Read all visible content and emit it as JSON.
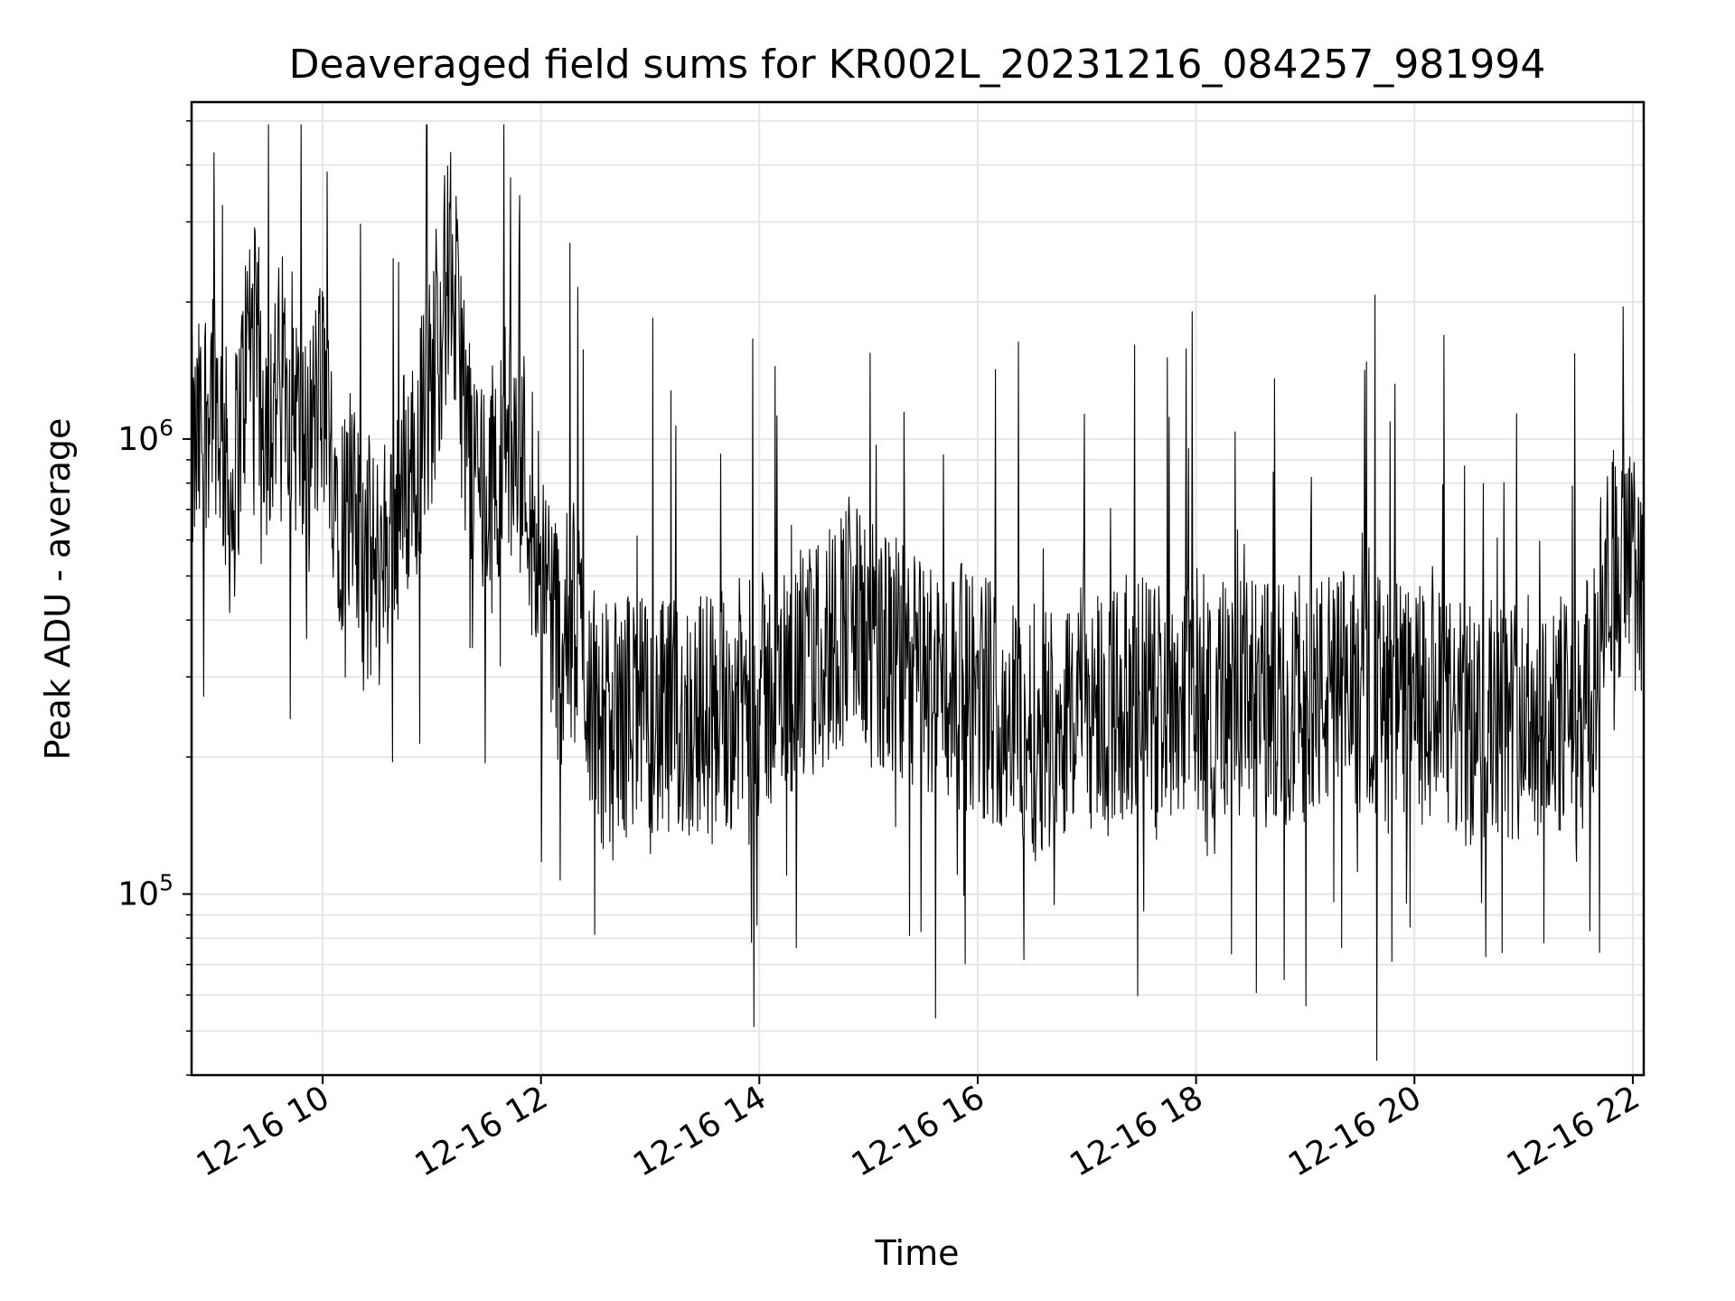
{
  "chart_data": {
    "type": "line",
    "title": "Deaveraged field sums for KR002L_20231216_084257_981994",
    "xlabel": "Time",
    "ylabel": "Peak ADU - average",
    "x_scale": "time",
    "y_scale": "log",
    "xlim": [
      "2023-12-16 08:48",
      "2023-12-16 22:06"
    ],
    "ylim": [
      40000,
      5500000
    ],
    "grid": true,
    "x_tick_labels": [
      "12-16 10",
      "12-16 12",
      "12-16 14",
      "12-16 16",
      "12-16 18",
      "12-16 20",
      "12-16 22"
    ],
    "x_tick_times": [
      "2023-12-16 10:00",
      "2023-12-16 12:00",
      "2023-12-16 14:00",
      "2023-12-16 16:00",
      "2023-12-16 18:00",
      "2023-12-16 20:00",
      "2023-12-16 22:00"
    ],
    "y_tick_labels": [
      {
        "base": "10",
        "exp": "5",
        "value": 100000
      },
      {
        "base": "10",
        "exp": "6",
        "value": 1000000
      }
    ],
    "series": [
      {
        "color": "#000000",
        "points": [
          [
            "2023-12-16 08:50",
            900000
          ],
          [
            "2023-12-16 09:00",
            1400000
          ],
          [
            "2023-12-16 09:10",
            700000
          ],
          [
            "2023-12-16 09:20",
            1800000
          ],
          [
            "2023-12-16 09:30",
            1100000
          ],
          [
            "2023-12-16 09:40",
            1500000
          ],
          [
            "2023-12-16 09:50",
            900000
          ],
          [
            "2023-12-16 10:00",
            1300000
          ],
          [
            "2023-12-16 10:10",
            700000
          ],
          [
            "2023-12-16 10:20",
            600000
          ],
          [
            "2023-12-16 10:30",
            500000
          ],
          [
            "2023-12-16 10:40",
            700000
          ],
          [
            "2023-12-16 10:50",
            900000
          ],
          [
            "2023-12-16 11:00",
            1300000
          ],
          [
            "2023-12-16 11:10",
            2500000
          ],
          [
            "2023-12-16 11:20",
            1000000
          ],
          [
            "2023-12-16 11:30",
            700000
          ],
          [
            "2023-12-16 11:40",
            1000000
          ],
          [
            "2023-12-16 11:50",
            900000
          ],
          [
            "2023-12-16 12:00",
            600000
          ],
          [
            "2023-12-16 12:10",
            350000
          ],
          [
            "2023-12-16 12:20",
            400000
          ],
          [
            "2023-12-16 12:30",
            250000
          ],
          [
            "2023-12-16 12:40",
            220000
          ],
          [
            "2023-12-16 12:50",
            260000
          ],
          [
            "2023-12-16 13:00",
            230000
          ],
          [
            "2023-12-16 13:30",
            250000
          ],
          [
            "2023-12-16 14:00",
            270000
          ],
          [
            "2023-12-16 14:30",
            320000
          ],
          [
            "2023-12-16 14:50",
            420000
          ],
          [
            "2023-12-16 15:00",
            350000
          ],
          [
            "2023-12-16 15:30",
            300000
          ],
          [
            "2023-12-16 16:00",
            280000
          ],
          [
            "2023-12-16 16:30",
            230000
          ],
          [
            "2023-12-16 17:00",
            260000
          ],
          [
            "2023-12-16 17:30",
            270000
          ],
          [
            "2023-12-16 18:00",
            280000
          ],
          [
            "2023-12-16 18:30",
            260000
          ],
          [
            "2023-12-16 19:00",
            270000
          ],
          [
            "2023-12-16 19:30",
            280000
          ],
          [
            "2023-12-16 20:00",
            260000
          ],
          [
            "2023-12-16 20:30",
            230000
          ],
          [
            "2023-12-16 21:00",
            250000
          ],
          [
            "2023-12-16 21:30",
            240000
          ],
          [
            "2023-12-16 21:40",
            300000
          ],
          [
            "2023-12-16 21:45",
            550000
          ],
          [
            "2023-12-16 22:00",
            500000
          ],
          [
            "2023-12-16 22:05",
            560000
          ]
        ]
      }
    ]
  }
}
